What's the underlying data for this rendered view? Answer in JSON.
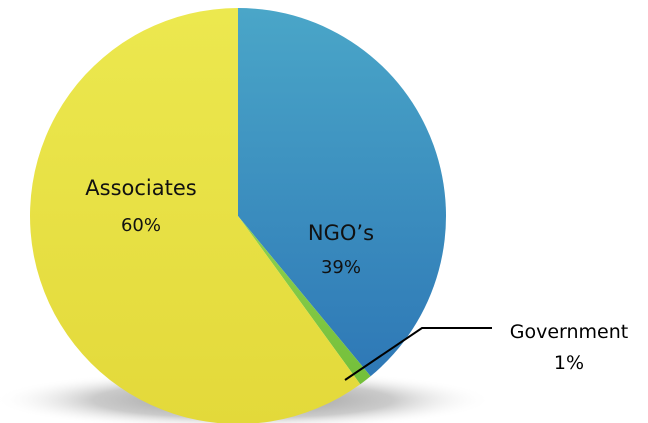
{
  "chart_data": {
    "type": "pie",
    "title": "",
    "slices": [
      {
        "label": "NGO’s",
        "value": 39,
        "value_label": "39%",
        "color_top": "#4aa6c8",
        "color_bottom": "#2e78b6"
      },
      {
        "label": "Government",
        "value": 1,
        "value_label": "1%",
        "color_top": "#8fd14f",
        "color_bottom": "#73bf3a"
      },
      {
        "label": "Associates",
        "value": 60,
        "value_label": "60%",
        "color_top": "#ece84f",
        "color_bottom": "#e3d93a"
      }
    ],
    "start_angle": "12 o'clock",
    "direction": "clockwise",
    "label_placement": {
      "NGO’s": "inside",
      "Government": "outside-right-with-leader-line",
      "Associates": "inside"
    },
    "legend": "none",
    "shadow": true
  }
}
